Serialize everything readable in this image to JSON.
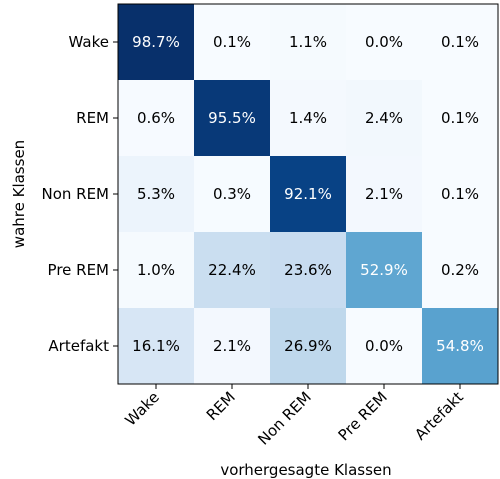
{
  "chart_data": {
    "type": "heatmap",
    "title": "",
    "xlabel": "vorhergesagte Klassen",
    "ylabel": "wahre Klassen",
    "x_categories": [
      "Wake",
      "REM",
      "Non REM",
      "Pre REM",
      "Artefakt"
    ],
    "y_categories": [
      "Wake",
      "REM",
      "Non REM",
      "Pre REM",
      "Artefakt"
    ],
    "values": [
      [
        98.7,
        0.1,
        1.1,
        0.0,
        0.1
      ],
      [
        0.6,
        95.5,
        1.4,
        2.4,
        0.1
      ],
      [
        5.3,
        0.3,
        92.1,
        2.1,
        0.1
      ],
      [
        1.0,
        22.4,
        23.6,
        52.9,
        0.2
      ],
      [
        16.1,
        2.1,
        26.9,
        0.0,
        54.8
      ]
    ],
    "value_format": "percent_1dp",
    "colormap": "Blues",
    "grid": false,
    "x_tick_rotation": 45
  }
}
